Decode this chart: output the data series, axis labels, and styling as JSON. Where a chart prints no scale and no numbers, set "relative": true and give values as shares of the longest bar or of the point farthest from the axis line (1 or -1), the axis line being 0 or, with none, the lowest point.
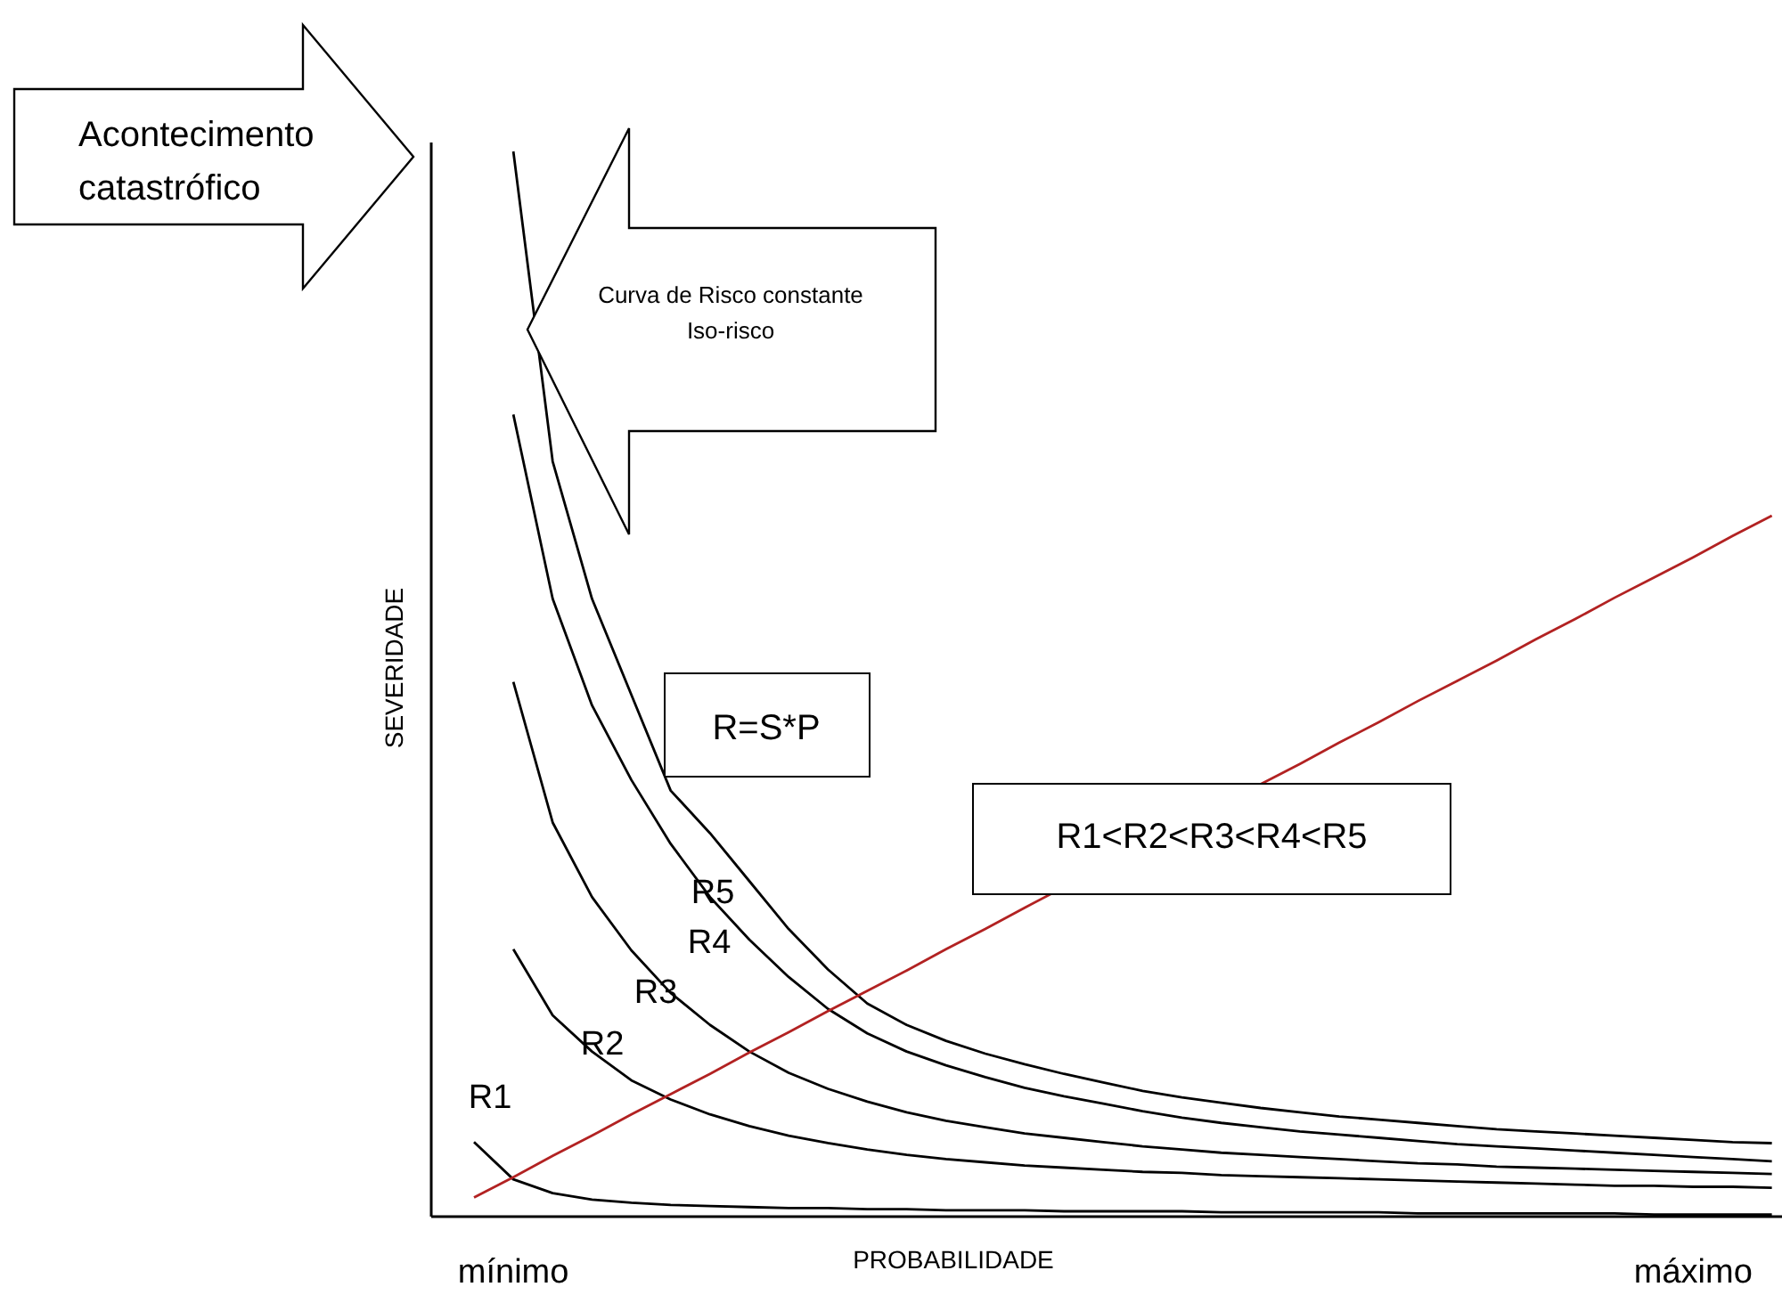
{
  "chart_data": {
    "type": "line",
    "relative": true,
    "xlabel": "PROBABILIDADE",
    "ylabel": "SEVERIDADE",
    "categories": [
      null,
      "mínimo",
      null,
      null,
      null,
      null,
      null,
      null,
      null,
      null,
      null,
      null,
      null,
      null,
      null,
      null,
      null,
      null,
      null,
      null,
      null,
      null,
      null,
      null,
      null,
      null,
      null,
      null,
      null,
      null,
      null,
      "máximo",
      null,
      null
    ],
    "annotations": [
      "Acontecimento catastrófico",
      "Curva de Risco constante\nIso-risco",
      "R=S*P",
      "R1<R2<R3<R4<R5"
    ],
    "series": [
      {
        "name": "R1",
        "color": "#000000",
        "values": [
          0.07,
          0.035,
          0.022,
          0.016,
          0.013,
          0.011,
          0.01,
          0.009,
          0.008,
          0.008,
          0.007,
          0.007,
          0.006,
          0.006,
          0.006,
          0.005,
          0.005,
          0.005,
          0.005,
          0.004,
          0.004,
          0.004,
          0.004,
          0.004,
          0.003,
          0.003,
          0.003,
          0.003,
          0.003,
          0.003,
          0.002,
          0.002,
          0.002,
          0.002
        ]
      },
      {
        "name": "R2",
        "color": "#000000",
        "values": [
          null,
          0.251,
          0.189,
          0.155,
          0.128,
          0.11,
          0.096,
          0.085,
          0.076,
          0.069,
          0.063,
          0.058,
          0.054,
          0.051,
          0.048,
          0.046,
          0.044,
          0.042,
          0.041,
          0.039,
          0.038,
          0.037,
          0.036,
          0.035,
          0.034,
          0.033,
          0.032,
          0.031,
          0.03,
          0.029,
          0.029,
          0.028,
          0.028,
          0.027
        ]
      },
      {
        "name": "R3",
        "color": "#000000",
        "values": [
          null,
          0.502,
          0.37,
          0.3,
          0.25,
          0.21,
          0.18,
          0.155,
          0.135,
          0.12,
          0.108,
          0.098,
          0.09,
          0.084,
          0.078,
          0.074,
          0.07,
          0.066,
          0.063,
          0.06,
          0.058,
          0.056,
          0.054,
          0.052,
          0.05,
          0.049,
          0.047,
          0.046,
          0.045,
          0.044,
          0.043,
          0.042,
          0.041,
          0.04
        ]
      },
      {
        "name": "R4",
        "color": "#000000",
        "values": [
          null,
          0.753,
          0.58,
          0.48,
          0.41,
          0.35,
          0.3,
          0.26,
          0.225,
          0.195,
          0.172,
          0.155,
          0.142,
          0.131,
          0.121,
          0.113,
          0.106,
          0.099,
          0.093,
          0.088,
          0.084,
          0.08,
          0.077,
          0.074,
          0.071,
          0.068,
          0.066,
          0.064,
          0.062,
          0.06,
          0.058,
          0.056,
          0.054,
          0.052
        ]
      },
      {
        "name": "R5",
        "color": "#000000",
        "values": [
          null,
          1.0,
          0.709,
          0.58,
          0.49,
          0.4,
          0.36,
          0.315,
          0.27,
          0.232,
          0.2,
          0.18,
          0.165,
          0.153,
          0.143,
          0.134,
          0.126,
          0.118,
          0.112,
          0.107,
          0.102,
          0.098,
          0.094,
          0.091,
          0.088,
          0.085,
          0.082,
          0.08,
          0.078,
          0.076,
          0.074,
          0.072,
          0.07,
          0.069
        ]
      },
      {
        "color": "#b22222",
        "values": [
          0.018,
          0.037,
          0.057,
          0.076,
          0.096,
          0.115,
          0.134,
          0.154,
          0.173,
          0.193,
          0.212,
          0.231,
          0.251,
          0.27,
          0.29,
          null,
          null,
          null,
          null,
          null,
          0.406,
          0.425,
          0.445,
          0.464,
          0.484,
          0.503,
          0.522,
          0.542,
          0.561,
          0.581,
          0.6,
          0.619,
          0.639,
          0.658
        ]
      }
    ]
  }
}
